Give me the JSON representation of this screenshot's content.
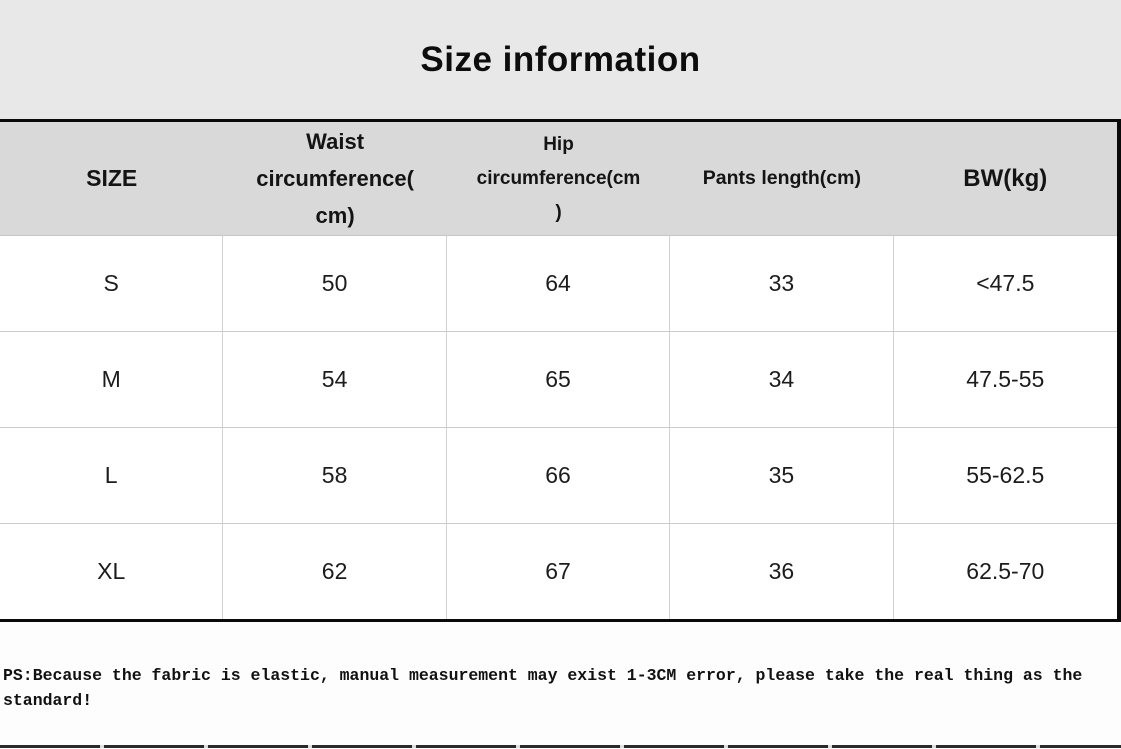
{
  "chart_data": {
    "type": "table",
    "title": "Size information",
    "columns": [
      "SIZE",
      "Waist circumference(cm)",
      "Hip circumference(cm)",
      "Pants length(cm)",
      "BW(kg)"
    ],
    "column_lines": [
      [
        "SIZE"
      ],
      [
        "Waist",
        "circumference(",
        "cm)"
      ],
      [
        "Hip",
        "circumference(cm",
        ")"
      ],
      [
        "Pants length(cm)"
      ],
      [
        "BW(kg)"
      ]
    ],
    "rows": [
      [
        "S",
        "50",
        "64",
        "33",
        "<47.5"
      ],
      [
        "M",
        "54",
        "65",
        "34",
        "47.5-55"
      ],
      [
        "L",
        "58",
        "66",
        "35",
        "55-62.5"
      ],
      [
        "XL",
        "62",
        "67",
        "36",
        "62.5-70"
      ]
    ],
    "note": "PS:Because the fabric is elastic, manual measurement may exist 1-3CM error, please take the real thing as the standard!",
    "note_line1": "PS:Because the fabric is elastic, manual measurement may exist 1-3CM error, please take the real thing as the",
    "note_line2": "standard!"
  },
  "colors": {
    "band_bg": "#e8e8e8",
    "header_bg": "#d9d9d9",
    "table_border": "#0a0a0a",
    "grid_line": "#cccccc",
    "text": "#111111"
  }
}
